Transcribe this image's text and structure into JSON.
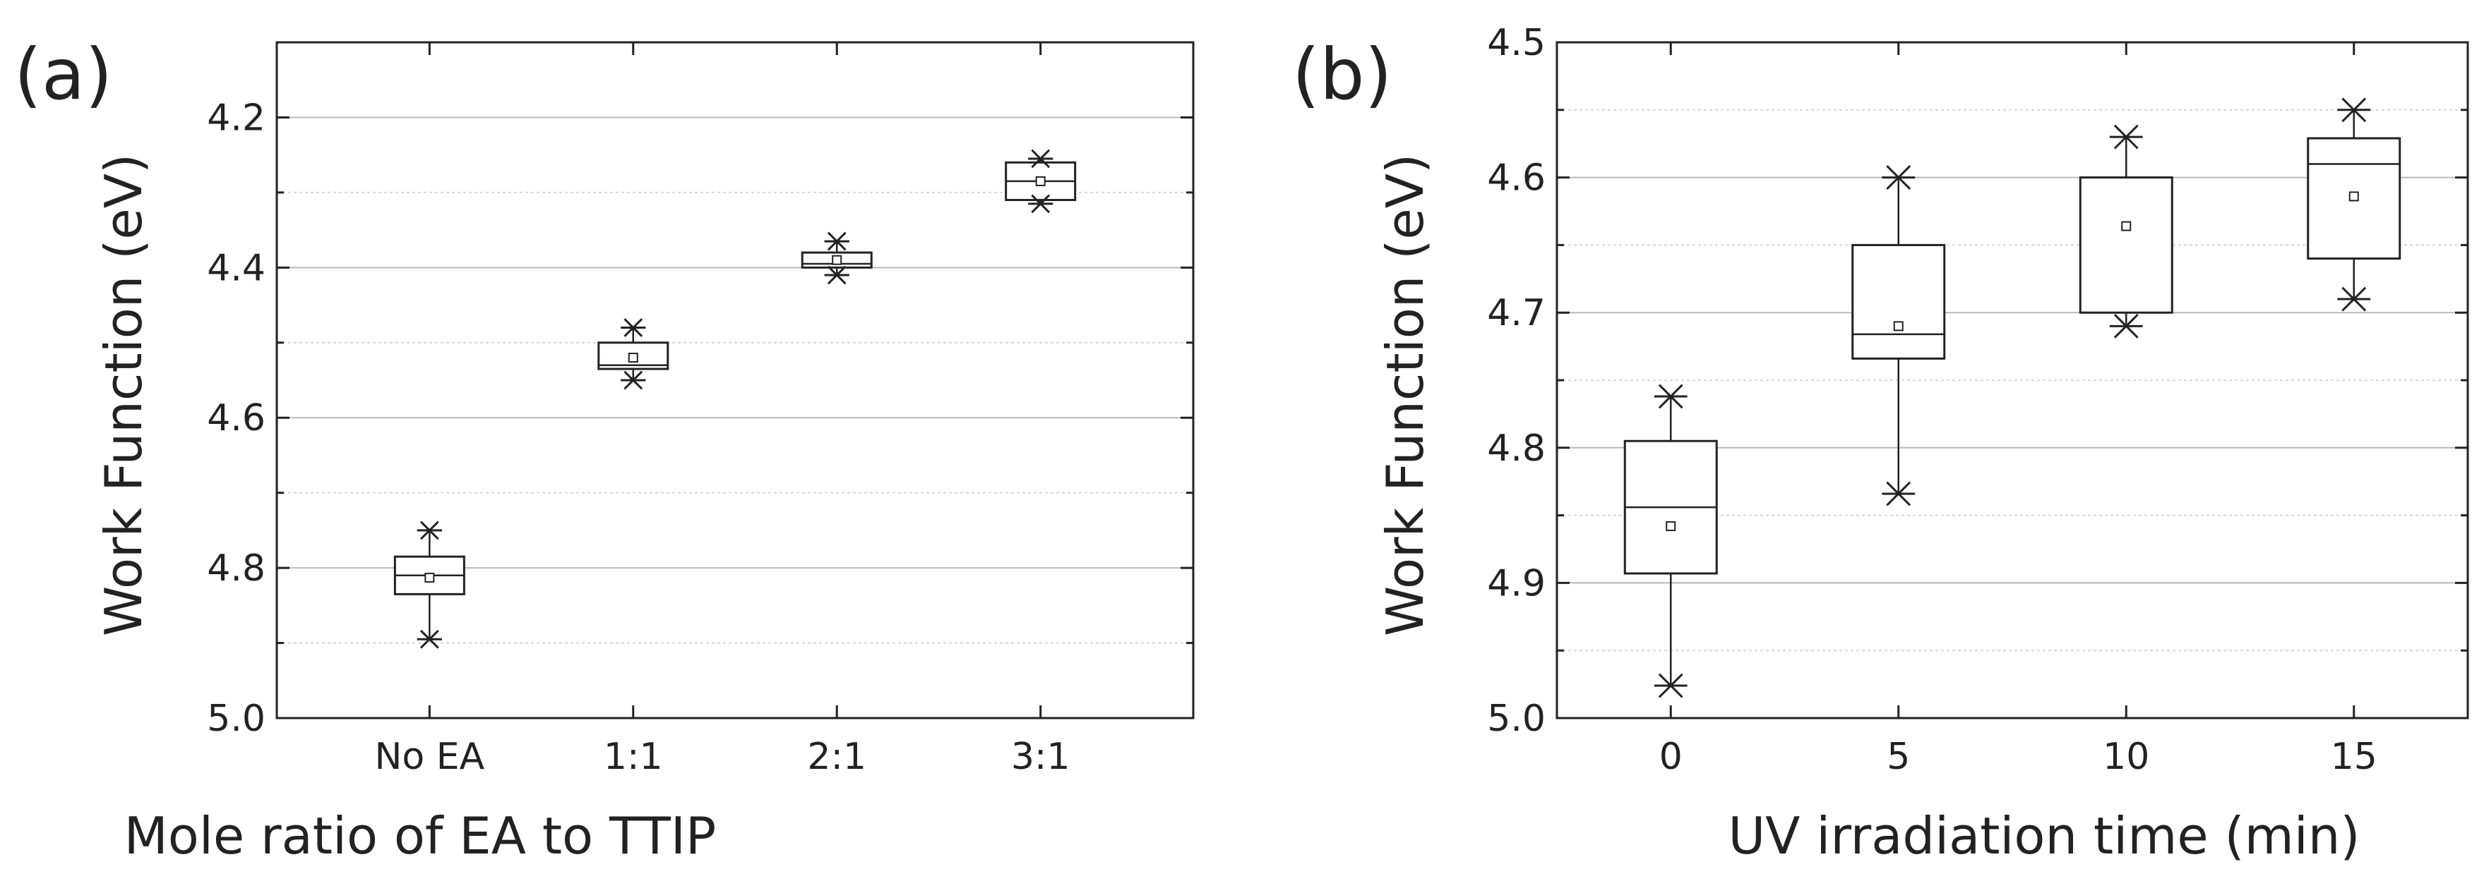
{
  "chart_data": [
    {
      "type": "box",
      "panel_label": "(a)",
      "title": "",
      "xlabel": "Mole ratio of EA to TTIP",
      "ylabel": "Work Function (eV)",
      "y_inverted": true,
      "ylim": [
        4.1,
        5.0
      ],
      "major_ticks": [
        4.2,
        4.4,
        4.6,
        4.8,
        5.0
      ],
      "tick_labels": [
        "4.2",
        "4.4",
        "4.6",
        "4.8",
        "5.0"
      ],
      "minor_ticks": [
        4.1,
        4.3,
        4.5,
        4.7,
        4.9
      ],
      "grid": true,
      "categories": [
        "No EA",
        "1:1",
        "2:1",
        "3:1"
      ],
      "boxes": [
        {
          "category": "No EA",
          "min": 4.75,
          "q1": 4.785,
          "median": 4.81,
          "q3": 4.835,
          "max": 4.895,
          "mean": 4.813
        },
        {
          "category": "1:1",
          "min": 4.48,
          "q1": 4.5,
          "median": 4.53,
          "q3": 4.535,
          "max": 4.55,
          "mean": 4.52
        },
        {
          "category": "2:1",
          "min": 4.365,
          "q1": 4.38,
          "median": 4.395,
          "q3": 4.4,
          "max": 4.41,
          "mean": 4.39
        },
        {
          "category": "3:1",
          "min": 4.255,
          "q1": 4.26,
          "median": 4.285,
          "q3": 4.31,
          "max": 4.315,
          "mean": 4.285
        }
      ]
    },
    {
      "type": "box",
      "panel_label": "(b)",
      "title": "",
      "xlabel": "UV irradiation time (min)",
      "ylabel": "Work Function (eV)",
      "y_inverted": true,
      "ylim": [
        4.5,
        5.0
      ],
      "major_ticks": [
        4.5,
        4.6,
        4.7,
        4.8,
        4.9,
        5.0
      ],
      "tick_labels": [
        "4.5",
        "4.6",
        "4.7",
        "4.8",
        "4.9",
        "5.0"
      ],
      "minor_ticks": [
        4.55,
        4.65,
        4.75,
        4.85,
        4.95
      ],
      "grid": true,
      "xlim": [
        -2.5,
        17.5
      ],
      "x_ticks": [
        0,
        5,
        10,
        15
      ],
      "x_tick_labels": [
        "0",
        "5",
        "10",
        "15"
      ],
      "boxes": [
        {
          "x": 0,
          "min": 4.762,
          "q1": 4.795,
          "median": 4.844,
          "q3": 4.893,
          "max": 4.976,
          "mean": 4.858
        },
        {
          "x": 5,
          "min": 4.6,
          "q1": 4.65,
          "median": 4.716,
          "q3": 4.734,
          "max": 4.834,
          "mean": 4.71
        },
        {
          "x": 10,
          "min": 4.57,
          "q1": 4.6,
          "median": 4.6,
          "q3": 4.7,
          "max": 4.71,
          "mean": 4.636
        },
        {
          "x": 15,
          "min": 4.55,
          "q1": 4.571,
          "median": 4.59,
          "q3": 4.66,
          "max": 4.69,
          "mean": 4.614
        }
      ]
    }
  ]
}
